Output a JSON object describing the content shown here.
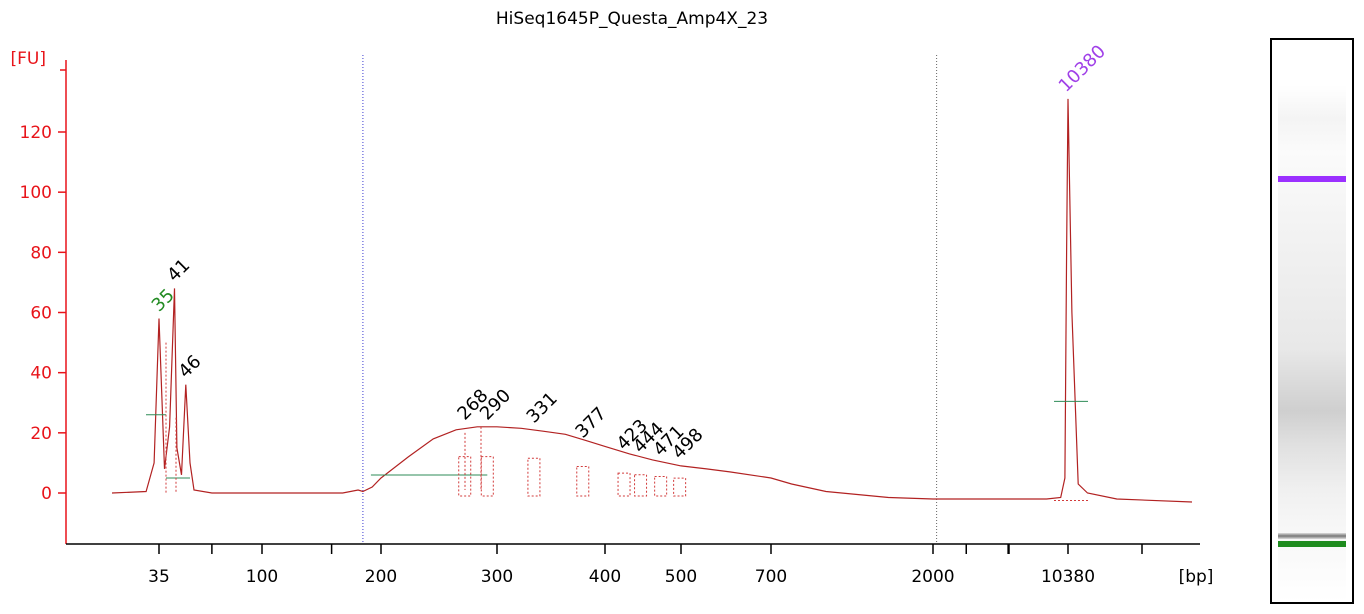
{
  "chart_data": {
    "type": "line",
    "title": "HiSeq1645P_Questa_Amp4X_23",
    "ylabel": "[FU]",
    "xlabel": "[bp]",
    "ylim": [
      -17,
      145
    ],
    "yticks": [
      0,
      20,
      40,
      60,
      80,
      100,
      120
    ],
    "ytick_labels": [
      "0",
      "20",
      "40",
      "60",
      "80",
      "100",
      "120"
    ],
    "xtick_labels": [
      "35",
      "100",
      "200",
      "300",
      "400",
      "500",
      "700",
      "2000",
      "10380"
    ],
    "xticks_bp": [
      35,
      100,
      200,
      300,
      400,
      500,
      700,
      2000,
      10380
    ],
    "x_scale": "sizing-ladder (nonlinear)",
    "colors": {
      "axis": "#e8141a",
      "trace": "#b22222",
      "lower_marker": "#228b22",
      "upper_marker": "#a040e8",
      "peak_label": "#000000"
    },
    "markers": [
      {
        "name": "lower",
        "bp": 35,
        "label": "35",
        "color": "#228b22"
      },
      {
        "name": "upper",
        "bp": 10380,
        "label": "10380",
        "color": "#a040e8"
      }
    ],
    "peaks": [
      {
        "bp": 35,
        "label": "35",
        "fu": 58
      },
      {
        "bp": 41,
        "label": "41",
        "fu": 68
      },
      {
        "bp": 46,
        "label": "46",
        "fu": 36
      },
      {
        "bp": 268,
        "label": "268",
        "fu": 22
      },
      {
        "bp": 290,
        "label": "290",
        "fu": 22
      },
      {
        "bp": 331,
        "label": "331",
        "fu": 21
      },
      {
        "bp": 377,
        "label": "377",
        "fu": 16
      },
      {
        "bp": 423,
        "label": "423",
        "fu": 12
      },
      {
        "bp": 444,
        "label": "444",
        "fu": 11
      },
      {
        "bp": 471,
        "label": "471",
        "fu": 10
      },
      {
        "bp": 498,
        "label": "498",
        "fu": 9
      },
      {
        "bp": 10380,
        "label": "10380",
        "fu": 131
      }
    ],
    "regions": [
      {
        "from_bp": 180,
        "to_bp": 2090,
        "label": ""
      }
    ],
    "trace": {
      "bp": [
        20,
        30,
        33,
        35,
        37,
        39,
        41,
        42,
        44,
        46,
        48,
        50,
        60,
        80,
        100,
        130,
        160,
        175,
        180,
        190,
        200,
        220,
        240,
        260,
        280,
        300,
        320,
        340,
        360,
        380,
        400,
        430,
        460,
        500,
        550,
        600,
        700,
        800,
        1000,
        1500,
        2000,
        3000,
        5000,
        8000,
        9500,
        10000,
        10200,
        10380,
        10500,
        10700,
        11000,
        12000,
        15000
      ],
      "fu": [
        0,
        0.5,
        10,
        58,
        8,
        22,
        68,
        15,
        6,
        36,
        10,
        1,
        0,
        0,
        0,
        0,
        0,
        1,
        0.5,
        2,
        5,
        12,
        18,
        21,
        22,
        22,
        21.5,
        20.5,
        19.5,
        17.5,
        15.5,
        13,
        11,
        9,
        8,
        7,
        5,
        3,
        0.5,
        -1.5,
        -2,
        -2,
        -2,
        -2,
        -1.5,
        5,
        80,
        131,
        60,
        3,
        0,
        -2,
        -3
      ]
    }
  },
  "gel": {
    "label": "gel lane",
    "bands": [
      {
        "name": "upper-marker-band",
        "color": "#9b30ff",
        "position": 0.24
      },
      {
        "name": "lower-marker-band",
        "color": "#1e8c1e",
        "position": 0.885
      }
    ]
  }
}
